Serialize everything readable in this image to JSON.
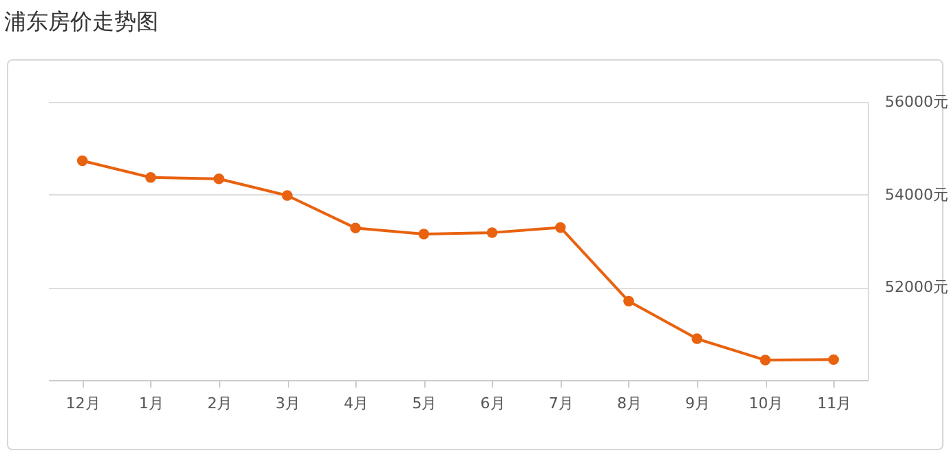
{
  "chart_data": {
    "type": "line",
    "title": "浦东房价走势图",
    "categories": [
      "12月",
      "1月",
      "2月",
      "3月",
      "4月",
      "5月",
      "6月",
      "7月",
      "8月",
      "9月",
      "10月",
      "11月"
    ],
    "series": [
      {
        "color": "#e8620f",
        "values": [
          54730,
          54370,
          54340,
          53980,
          53280,
          53150,
          53180,
          53290,
          51700,
          50890,
          50430,
          50440
        ]
      }
    ],
    "ylim": [
      50000,
      56000
    ],
    "yticks": [
      {
        "value": 52000,
        "label": "52000元"
      },
      {
        "value": 54000,
        "label": "54000元"
      },
      {
        "value": 56000,
        "label": "56000元"
      }
    ],
    "grid": "y",
    "marker": "circle",
    "line_style": "solid"
  }
}
